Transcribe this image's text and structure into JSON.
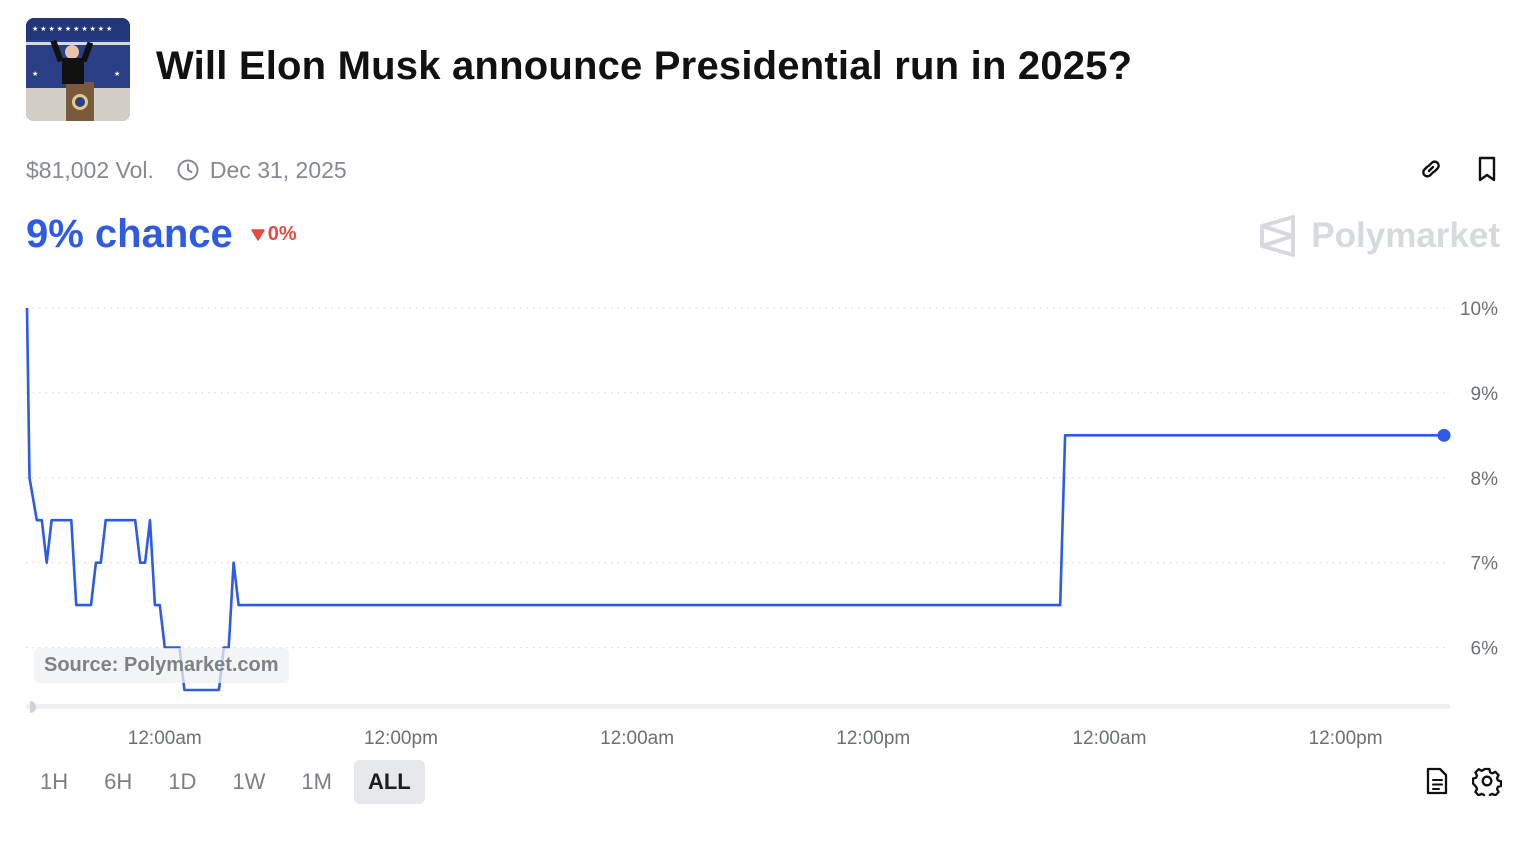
{
  "header": {
    "title": "Will Elon Musk announce Presidential run in 2025?",
    "volume": "$81,002 Vol.",
    "end_date": "Dec 31, 2025"
  },
  "summary": {
    "chance": "9% chance",
    "delta": "0%",
    "delta_direction": "down"
  },
  "brand": {
    "name": "Polymarket"
  },
  "source": "Source: Polymarket.com",
  "ranges": [
    "1H",
    "6H",
    "1D",
    "1W",
    "1M",
    "ALL"
  ],
  "active_range": "ALL",
  "icons": {
    "top": [
      "link-icon",
      "bookmark-icon"
    ],
    "bottom": [
      "document-icon",
      "settings-icon"
    ]
  },
  "colors": {
    "accent": "#2d5be3",
    "delta_down": "#e8483f",
    "axis_text": "#6b7075",
    "grid": "#d9dcdf"
  },
  "chart_data": {
    "type": "line",
    "series": [
      {
        "values": [
          {
            "t": 0,
            "y": 10.0
          },
          {
            "t": 0.5,
            "y": 8.0
          },
          {
            "t": 2,
            "y": 7.5
          },
          {
            "t": 3,
            "y": 7.5
          },
          {
            "t": 4,
            "y": 7.0
          },
          {
            "t": 5,
            "y": 7.5
          },
          {
            "t": 9,
            "y": 7.5
          },
          {
            "t": 10,
            "y": 6.5
          },
          {
            "t": 13,
            "y": 6.5
          },
          {
            "t": 14,
            "y": 7.0
          },
          {
            "t": 15,
            "y": 7.0
          },
          {
            "t": 16,
            "y": 7.5
          },
          {
            "t": 22,
            "y": 7.5
          },
          {
            "t": 23,
            "y": 7.0
          },
          {
            "t": 24,
            "y": 7.0
          },
          {
            "t": 25,
            "y": 7.5
          },
          {
            "t": 26,
            "y": 6.5
          },
          {
            "t": 27,
            "y": 6.5
          },
          {
            "t": 28,
            "y": 6.0
          },
          {
            "t": 31,
            "y": 6.0
          },
          {
            "t": 32,
            "y": 5.5
          },
          {
            "t": 39,
            "y": 5.5
          },
          {
            "t": 40,
            "y": 6.0
          },
          {
            "t": 41,
            "y": 6.0
          },
          {
            "t": 42,
            "y": 7.0
          },
          {
            "t": 43,
            "y": 6.5
          },
          {
            "t": 210,
            "y": 6.5
          },
          {
            "t": 211,
            "y": 8.5
          },
          {
            "t": 288,
            "y": 8.5
          }
        ]
      }
    ],
    "x_tick_labels": [
      "12:00am",
      "12:00pm",
      "12:00am",
      "12:00pm",
      "12:00am",
      "12:00pm"
    ],
    "x_tick_positions": [
      28,
      76,
      124,
      172,
      220,
      268
    ],
    "x_range": [
      0,
      288
    ],
    "y_ticks": [
      6,
      7,
      8,
      9,
      10
    ],
    "y_tick_labels": [
      "6%",
      "7%",
      "8%",
      "9%",
      "10%"
    ],
    "ylim": [
      5.5,
      10
    ],
    "grid": "dotted horizontal",
    "title": "",
    "xlabel": "",
    "ylabel": ""
  }
}
